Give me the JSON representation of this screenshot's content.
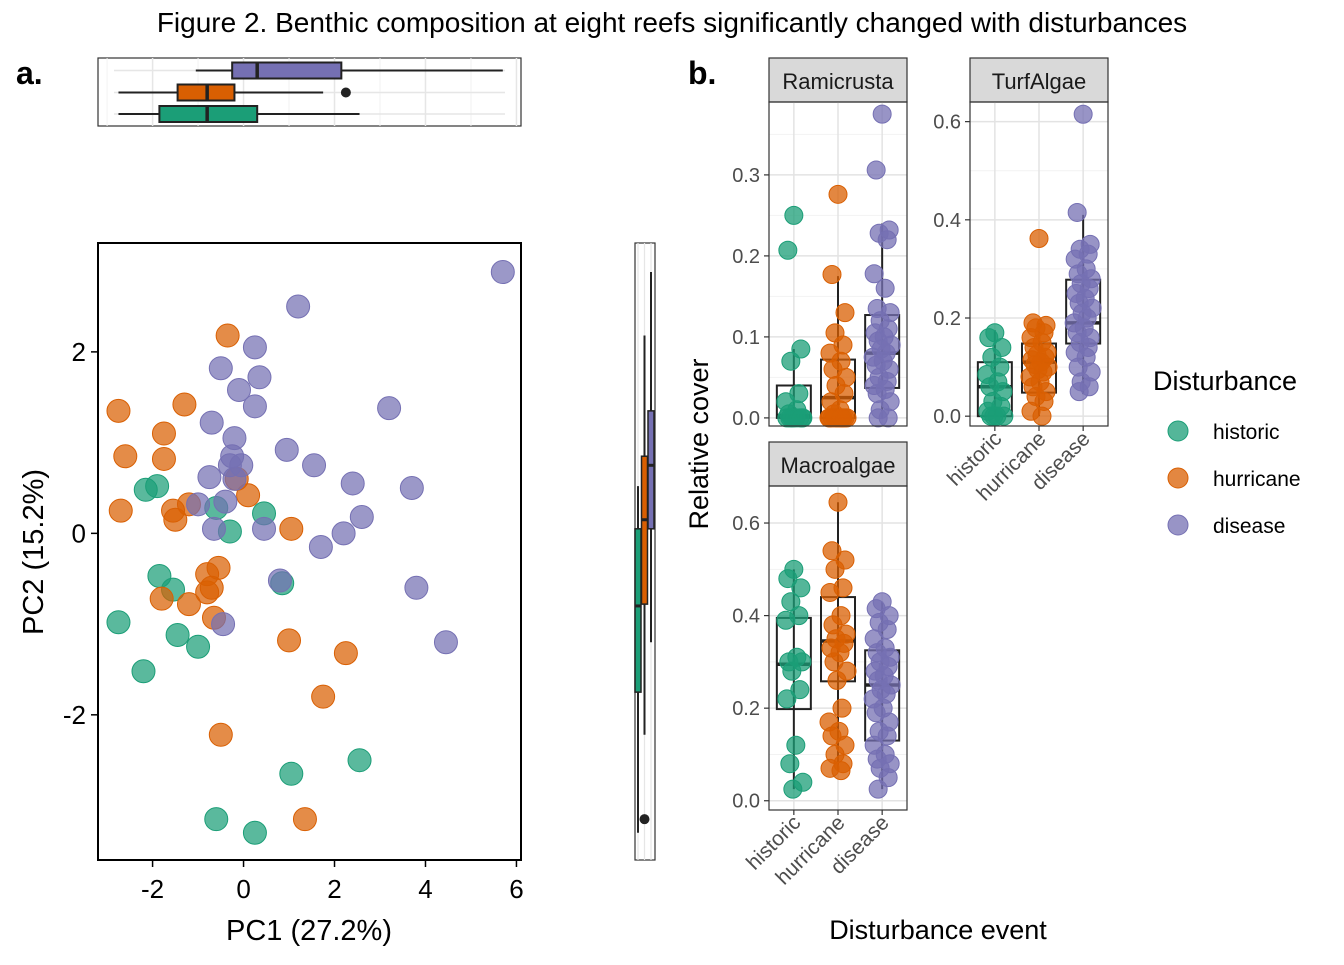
{
  "title": "Figure 2. Benthic composition at eight reefs significantly changed with disturbances",
  "panel_labels": {
    "a": "a.",
    "b": "b."
  },
  "colors": {
    "historic": "#1b9e77",
    "hurricane": "#d95f02",
    "disease": "#7570b3"
  },
  "chart_data": [
    {
      "type": "scatter",
      "xlabel": "PC1 (27.2%)",
      "ylabel": "PC2 (15.2%)",
      "xlim": [
        -3.2,
        6.1
      ],
      "ylim": [
        -3.6,
        3.2
      ],
      "x_ticks": [
        -2,
        0,
        2,
        4,
        6
      ],
      "x_tick_labels": [
        "-2",
        "0",
        "2",
        "4",
        "6"
      ],
      "y_ticks": [
        -2,
        0,
        2
      ],
      "y_tick_labels": [
        "-2",
        "0",
        "2"
      ],
      "grid": false,
      "series": [
        {
          "name": "historic",
          "points": [
            [
              -2.15,
              0.48
            ],
            [
              -1.9,
              0.52
            ],
            [
              -1.85,
              -0.47
            ],
            [
              -1.55,
              -0.62
            ],
            [
              -1.45,
              -1.12
            ],
            [
              -1.0,
              -1.25
            ],
            [
              -2.75,
              -0.98
            ],
            [
              -2.2,
              -1.52
            ],
            [
              -0.6,
              0.28
            ],
            [
              -0.3,
              0.02
            ],
            [
              0.45,
              0.22
            ],
            [
              0.85,
              -0.55
            ],
            [
              -0.6,
              -3.15
            ],
            [
              0.25,
              -3.3
            ],
            [
              1.05,
              -2.65
            ],
            [
              2.55,
              -2.5
            ]
          ]
        },
        {
          "name": "hurricane",
          "points": [
            [
              -2.75,
              1.35
            ],
            [
              -2.6,
              0.85
            ],
            [
              -2.7,
              0.25
            ],
            [
              -1.75,
              1.1
            ],
            [
              -1.75,
              0.82
            ],
            [
              -1.3,
              1.42
            ],
            [
              -1.55,
              0.25
            ],
            [
              -1.5,
              0.15
            ],
            [
              -1.2,
              0.32
            ],
            [
              -1.8,
              -0.72
            ],
            [
              -1.2,
              -0.78
            ],
            [
              -0.8,
              -0.65
            ],
            [
              -0.8,
              -0.45
            ],
            [
              -0.55,
              -0.38
            ],
            [
              -0.65,
              -0.93
            ],
            [
              -0.7,
              -0.6
            ],
            [
              -0.35,
              2.18
            ],
            [
              0.1,
              0.42
            ],
            [
              -0.15,
              0.6
            ],
            [
              1.05,
              0.05
            ],
            [
              1.0,
              -1.18
            ],
            [
              2.25,
              -1.32
            ],
            [
              1.75,
              -1.8
            ],
            [
              -0.5,
              -2.22
            ],
            [
              1.35,
              -3.15
            ]
          ]
        },
        {
          "name": "disease",
          "points": [
            [
              5.7,
              2.88
            ],
            [
              1.2,
              2.5
            ],
            [
              0.25,
              2.05
            ],
            [
              0.35,
              1.72
            ],
            [
              -0.5,
              1.82
            ],
            [
              -0.1,
              1.58
            ],
            [
              0.25,
              1.4
            ],
            [
              -0.7,
              1.22
            ],
            [
              -0.2,
              1.05
            ],
            [
              -0.25,
              0.85
            ],
            [
              -0.3,
              0.75
            ],
            [
              -0.05,
              0.75
            ],
            [
              -0.2,
              0.6
            ],
            [
              -0.75,
              0.62
            ],
            [
              -1.0,
              0.32
            ],
            [
              -0.4,
              0.35
            ],
            [
              -0.65,
              0.05
            ],
            [
              0.45,
              0.05
            ],
            [
              0.95,
              0.92
            ],
            [
              1.55,
              0.75
            ],
            [
              1.7,
              -0.15
            ],
            [
              2.2,
              0.0
            ],
            [
              2.4,
              0.55
            ],
            [
              2.6,
              0.18
            ],
            [
              3.2,
              1.38
            ],
            [
              3.7,
              0.5
            ],
            [
              3.8,
              -0.6
            ],
            [
              4.45,
              -1.2
            ],
            [
              0.8,
              -0.52
            ],
            [
              -0.45,
              -1.0
            ]
          ]
        }
      ],
      "top_boxplots": [
        {
          "name": "disease",
          "whisker_low": -1.05,
          "q1": -0.25,
          "median": 0.3,
          "q3": 2.15,
          "whisker_high": 5.7,
          "outliers": []
        },
        {
          "name": "hurricane",
          "whisker_low": -2.75,
          "q1": -1.45,
          "median": -0.8,
          "q3": -0.2,
          "whisker_high": 1.75,
          "outliers": [
            2.25
          ]
        },
        {
          "name": "historic",
          "whisker_low": -2.75,
          "q1": -1.85,
          "median": -0.8,
          "q3": 0.3,
          "whisker_high": 2.55,
          "outliers": []
        }
      ],
      "right_boxplots": [
        {
          "name": "disease",
          "whisker_low": -1.2,
          "q1": 0.05,
          "median": 0.75,
          "q3": 1.35,
          "whisker_high": 2.88,
          "outliers": []
        },
        {
          "name": "hurricane",
          "whisker_low": -2.22,
          "q1": -0.78,
          "median": 0.15,
          "q3": 0.85,
          "whisker_high": 2.18,
          "outliers": [
            -3.15
          ]
        },
        {
          "name": "historic",
          "whisker_low": -3.3,
          "q1": -1.75,
          "median": -0.8,
          "q3": 0.05,
          "whisker_high": 0.52,
          "outliers": []
        }
      ]
    },
    {
      "type": "box_jitter",
      "xlabel": "Disturbance event",
      "ylabel": "Relative cover",
      "categories": [
        "historic",
        "hurricane",
        "disease"
      ],
      "legend_title": "Disturbance",
      "legend": [
        "historic",
        "hurricane",
        "disease"
      ],
      "legend_position": "right",
      "facets": [
        {
          "name": "Ramicrusta",
          "ylim": [
            -0.01,
            0.39
          ],
          "y_ticks": [
            0.0,
            0.1,
            0.2,
            0.3
          ],
          "y_tick_labels": [
            "0.0",
            "0.1",
            "0.2",
            "0.3"
          ],
          "boxes": [
            {
              "q1": 0.0,
              "median": 0.003,
              "q3": 0.04,
              "whisker_low": 0.0,
              "whisker_high": 0.085
            },
            {
              "q1": 0.0,
              "median": 0.025,
              "q3": 0.072,
              "whisker_low": 0.0,
              "whisker_high": 0.175
            },
            {
              "q1": 0.037,
              "median": 0.08,
              "q3": 0.127,
              "whisker_low": 0.0,
              "whisker_high": 0.24
            }
          ],
          "points": [
            [
              0.25,
              0.207,
              0.085,
              0.07,
              0.03,
              0.02,
              0.01,
              0.005,
              0.0,
              0.0,
              0.0,
              0.0,
              0.0,
              0.0,
              0.0,
              0.0
            ],
            [
              0.276,
              0.177,
              0.13,
              0.105,
              0.09,
              0.08,
              0.07,
              0.06,
              0.05,
              0.04,
              0.03,
              0.02,
              0.01,
              0.005,
              0.0,
              0.0,
              0.0,
              0.0,
              0.0,
              0.0,
              0.0,
              0.0,
              0.0,
              0.0,
              0.0
            ],
            [
              0.375,
              0.306,
              0.232,
              0.228,
              0.22,
              0.178,
              0.16,
              0.135,
              0.13,
              0.12,
              0.11,
              0.105,
              0.1,
              0.095,
              0.09,
              0.085,
              0.08,
              0.075,
              0.07,
              0.065,
              0.06,
              0.05,
              0.045,
              0.04,
              0.035,
              0.03,
              0.02,
              0.01,
              0.0,
              0.0
            ]
          ]
        },
        {
          "name": "TurfAlgae",
          "ylim": [
            -0.02,
            0.64
          ],
          "y_ticks": [
            0.0,
            0.2,
            0.4,
            0.6
          ],
          "y_tick_labels": [
            "0.0",
            "0.2",
            "0.4",
            "0.6"
          ],
          "boxes": [
            {
              "q1": 0.0,
              "median": 0.06,
              "q3": 0.11,
              "whisker_low": 0.0,
              "whisker_high": 0.175
            },
            {
              "q1": 0.048,
              "median": 0.11,
              "q3": 0.148,
              "whisker_low": 0.0,
              "whisker_high": 0.19
            },
            {
              "q1": 0.148,
              "median": 0.19,
              "q3": 0.278,
              "whisker_low": 0.045,
              "whisker_high": 0.41
            }
          ],
          "points": [
            [
              0.17,
              0.16,
              0.14,
              0.12,
              0.1,
              0.085,
              0.07,
              0.06,
              0.05,
              0.03,
              0.02,
              0.01,
              0.0,
              0.0,
              0.0,
              0.0
            ],
            [
              0.362,
              0.19,
              0.185,
              0.18,
              0.17,
              0.16,
              0.15,
              0.14,
              0.13,
              0.125,
              0.12,
              0.115,
              0.11,
              0.105,
              0.1,
              0.095,
              0.09,
              0.08,
              0.07,
              0.06,
              0.05,
              0.04,
              0.03,
              0.01,
              0.0
            ],
            [
              0.615,
              0.415,
              0.35,
              0.34,
              0.33,
              0.32,
              0.3,
              0.29,
              0.28,
              0.27,
              0.26,
              0.25,
              0.24,
              0.23,
              0.22,
              0.21,
              0.2,
              0.19,
              0.18,
              0.17,
              0.16,
              0.15,
              0.14,
              0.13,
              0.12,
              0.1,
              0.09,
              0.07,
              0.06,
              0.05
            ]
          ]
        },
        {
          "name": "Macroalgae",
          "ylim": [
            -0.02,
            0.68
          ],
          "y_ticks": [
            0.0,
            0.2,
            0.4,
            0.6
          ],
          "y_tick_labels": [
            "0.0",
            "0.2",
            "0.4",
            "0.6"
          ],
          "boxes": [
            {
              "q1": 0.198,
              "median": 0.295,
              "q3": 0.395,
              "whisker_low": 0.025,
              "whisker_high": 0.5
            },
            {
              "q1": 0.258,
              "median": 0.345,
              "q3": 0.44,
              "whisker_low": 0.065,
              "whisker_high": 0.645
            },
            {
              "q1": 0.13,
              "median": 0.25,
              "q3": 0.325,
              "whisker_low": 0.025,
              "whisker_high": 0.43
            }
          ],
          "points": [
            [
              0.5,
              0.48,
              0.46,
              0.43,
              0.4,
              0.39,
              0.31,
              0.3,
              0.3,
              0.28,
              0.24,
              0.22,
              0.12,
              0.08,
              0.04,
              0.025
            ],
            [
              0.645,
              0.54,
              0.52,
              0.5,
              0.46,
              0.45,
              0.4,
              0.38,
              0.36,
              0.35,
              0.34,
              0.33,
              0.32,
              0.3,
              0.28,
              0.26,
              0.2,
              0.17,
              0.15,
              0.14,
              0.12,
              0.1,
              0.08,
              0.07,
              0.065
            ],
            [
              0.43,
              0.415,
              0.4,
              0.385,
              0.37,
              0.35,
              0.33,
              0.32,
              0.31,
              0.3,
              0.29,
              0.28,
              0.27,
              0.26,
              0.25,
              0.24,
              0.23,
              0.22,
              0.2,
              0.19,
              0.17,
              0.15,
              0.14,
              0.12,
              0.1,
              0.09,
              0.08,
              0.07,
              0.05,
              0.025
            ]
          ]
        }
      ]
    }
  ]
}
